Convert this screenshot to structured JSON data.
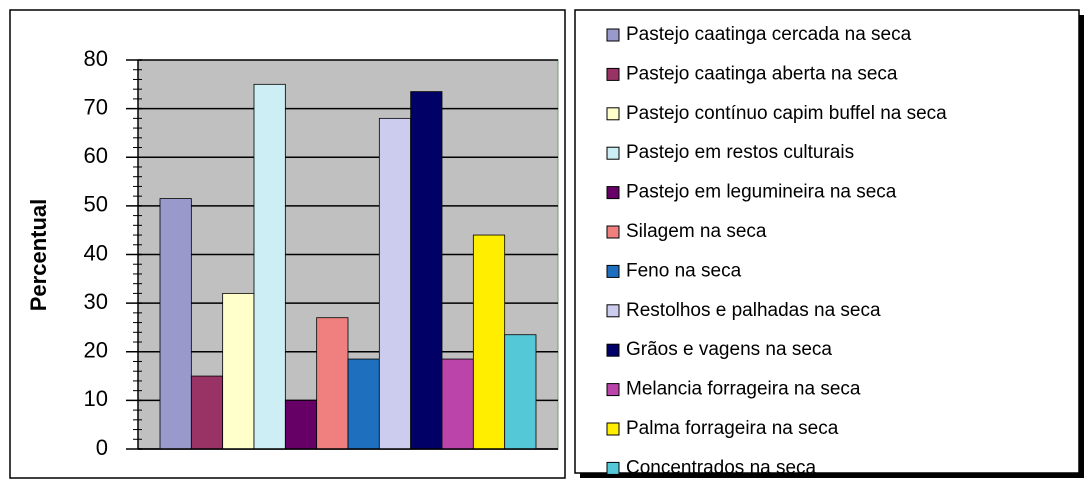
{
  "chart_data": {
    "type": "bar",
    "ylabel": "Percentual",
    "categories": [
      "Pastejo caatinga cercada na seca",
      "Pastejo caatinga aberta na seca",
      "Pastejo contínuo capim buffel na seca",
      "Pastejo em restos culturais",
      "Pastejo em legumineira na seca",
      "Silagem na seca",
      "Feno na seca",
      "Restolhos e palhadas na seca",
      "Grãos e vagens na seca",
      "Melancia forrageira na seca",
      "Palma forrageira na seca",
      "Concentrados na seca"
    ],
    "values": [
      51.5,
      15,
      32,
      75,
      10,
      27,
      18.5,
      68,
      73.5,
      18.5,
      44,
      23.5
    ],
    "colors": [
      "#9999cc",
      "#993366",
      "#ffffcc",
      "#cceef4",
      "#660066",
      "#f08080",
      "#1f6fbf",
      "#ccccee",
      "#000066",
      "#bb44aa",
      "#ffee00",
      "#55c8d8"
    ],
    "ylim": [
      0,
      80
    ],
    "yticks": [
      0,
      10,
      20,
      30,
      40,
      50,
      60,
      70,
      80
    ],
    "grid": true,
    "legend": "right"
  }
}
